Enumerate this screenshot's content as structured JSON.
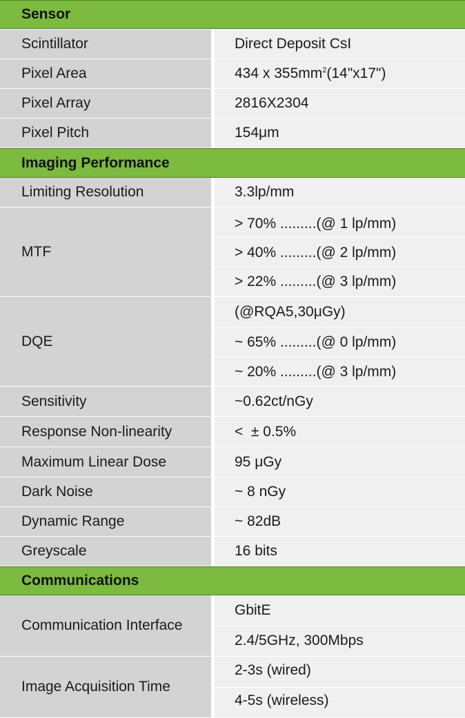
{
  "sections": {
    "sensor": "Sensor",
    "imaging": "Imaging Performance",
    "comms": "Communications"
  },
  "sensor": {
    "scintillator": {
      "label": "Scintillator",
      "value": "Direct Deposit CsI"
    },
    "pixel_area": {
      "label": "Pixel Area",
      "value_pre": "434 x 355mm",
      "value_sup": "2",
      "value_post": "(14\"x17\")"
    },
    "pixel_array": {
      "label": "Pixel Array",
      "value": "2816X2304"
    },
    "pixel_pitch": {
      "label": "Pixel Pitch",
      "value": "154μm"
    }
  },
  "imaging": {
    "limiting_resolution": {
      "label": "Limiting Resolution",
      "value": "3.3lp/mm"
    },
    "mtf": {
      "label": "MTF",
      "values": [
        "> 70%  .........(@ 1 lp/mm)",
        "> 40%  .........(@ 2 lp/mm)",
        "> 22%  .........(@ 3 lp/mm)"
      ]
    },
    "dqe": {
      "label": "DQE",
      "values": [
        "(@RQA5,30μGy)",
        "~ 65%  .........(@ 0 lp/mm)",
        "~ 20%  .........(@ 3 lp/mm)"
      ]
    },
    "sensitivity": {
      "label": "Sensitivity",
      "value": "~0.62ct/nGy"
    },
    "response_nonlinearity": {
      "label": "Response Non-linearity",
      "value": "<  ± 0.5%"
    },
    "max_linear_dose": {
      "label": "Maximum Linear Dose",
      "value": "95 μGy"
    },
    "dark_noise": {
      "label": "Dark Noise",
      "value": "~ 8 nGy"
    },
    "dynamic_range": {
      "label": "Dynamic Range",
      "value": "~ 82dB"
    },
    "greyscale": {
      "label": "Greyscale",
      "value": "16 bits"
    }
  },
  "comms": {
    "interface": {
      "label": "Communication Interface",
      "values": [
        "GbitE",
        "2.4/5GHz, 300Mbps"
      ]
    },
    "acquisition_time": {
      "label": "Image Acquisition Time",
      "values": [
        "2-3s (wired)",
        "4-5s (wireless)"
      ]
    }
  },
  "colors": {
    "section_header": "#7cbb3f",
    "label_cell": "#d3d3d3",
    "value_cell": "#f0f0f0"
  }
}
